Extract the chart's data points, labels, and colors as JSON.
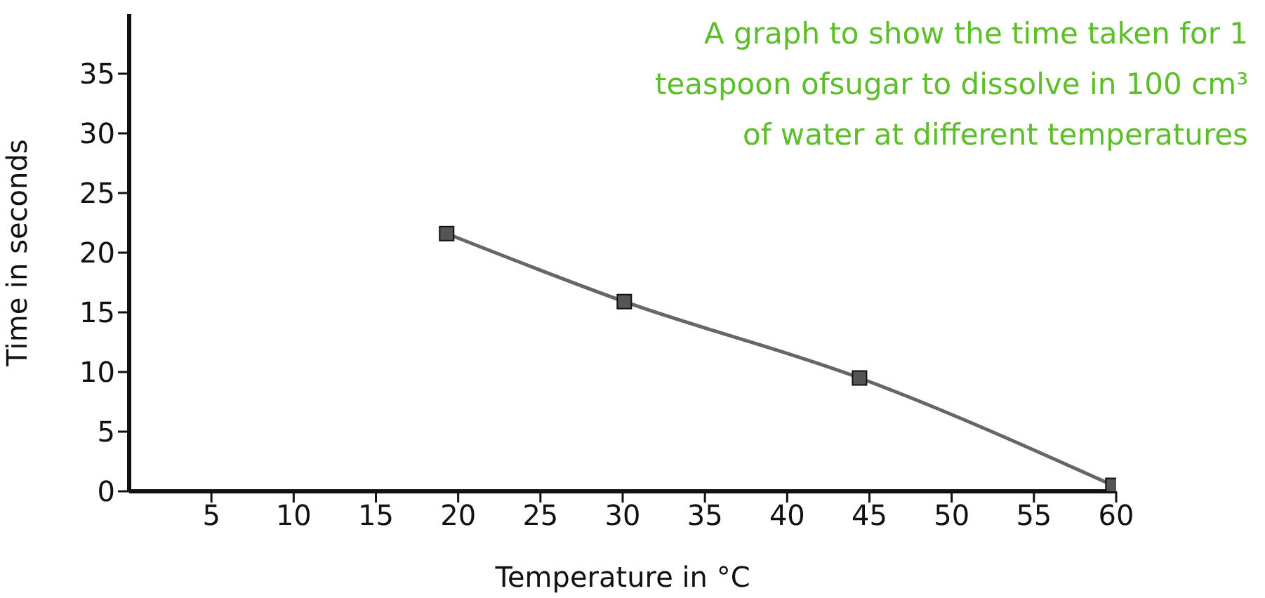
{
  "chart_data": {
    "type": "line",
    "title": "A graph to show the time taken for 1 teaspoon ofsugar to dissolve in 100 cm³ of water at different temperatures",
    "xlabel": "Temperature in °C",
    "ylabel": "Time in seconds",
    "x": [
      19.3,
      30.1,
      44.4,
      59.8
    ],
    "series": [
      {
        "color": "#666666",
        "values": [
          21.6,
          15.9,
          9.5,
          0.5
        ]
      }
    ],
    "xlim": [
      0,
      60
    ],
    "xticks": [
      5,
      10,
      15,
      20,
      25,
      30,
      35,
      40,
      45,
      50,
      55,
      60
    ],
    "ylim": [
      0,
      40
    ],
    "yticks": [
      0,
      5,
      10,
      15,
      20,
      25,
      30,
      35
    ],
    "grid": false,
    "legend": false,
    "marker": "square",
    "line_style": "solid"
  }
}
